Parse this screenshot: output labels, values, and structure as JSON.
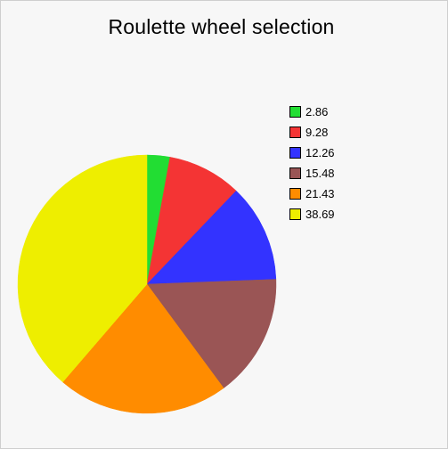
{
  "chart_data": {
    "type": "pie",
    "title": "Roulette wheel selection",
    "categories": [
      "2.86",
      "9.28",
      "12.26",
      "15.48",
      "21.43",
      "38.69"
    ],
    "values": [
      2.86,
      9.28,
      12.26,
      15.48,
      21.43,
      38.69
    ],
    "colors": [
      "#22dd33",
      "#f43434",
      "#3333ff",
      "#9a5555",
      "#ff8c00",
      "#eeee00"
    ],
    "legend_position": "top-right",
    "start_angle": "12 o'clock",
    "direction": "clockwise",
    "legend": [
      {
        "label": "2.86",
        "color": "#22dd33"
      },
      {
        "label": "9.28",
        "color": "#f43434"
      },
      {
        "label": "12.26",
        "color": "#3333ff"
      },
      {
        "label": "15.48",
        "color": "#9a5555"
      },
      {
        "label": "21.43",
        "color": "#ff8c00"
      },
      {
        "label": "38.69",
        "color": "#eeee00"
      }
    ]
  }
}
